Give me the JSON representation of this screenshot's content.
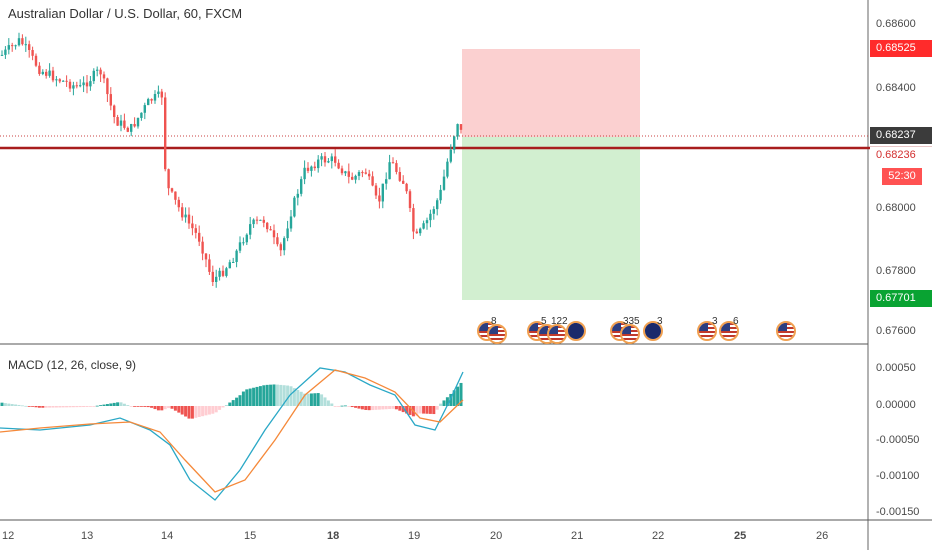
{
  "chart": {
    "title": "Australian Dollar / U.S. Dollar, 60, FXCM",
    "price_axis": [
      "0.68600",
      "0.68400",
      "0.68000",
      "0.67800",
      "0.67600"
    ],
    "labels": {
      "stop": "0.68525",
      "current": "0.68237",
      "last": "0.68236",
      "countdown": "52:30",
      "target": "0.67701"
    },
    "colors": {
      "up": "#26a69a",
      "down": "#ef5350",
      "stop_zone": "#f9c0c0",
      "target_zone": "#c8ebc6",
      "level_line": "#a81d1d"
    }
  },
  "macd": {
    "title": "MACD (12, 26, close, 9)",
    "axis": [
      "0.00050",
      "0.00000",
      "-0.00050",
      "-0.00100",
      "-0.00150"
    ]
  },
  "time_axis": [
    "12",
    "13",
    "14",
    "15",
    "18",
    "19",
    "20",
    "21",
    "22",
    "25",
    "26"
  ],
  "events": [
    {
      "num": "8",
      "icon": "us-flag-icon"
    },
    {
      "num": "5",
      "icon": "us-flag-icon"
    },
    {
      "num": "12",
      "icon": "us-flag-icon"
    },
    {
      "num": "2",
      "icon": "au-flag-icon"
    },
    {
      "num": "33",
      "icon": "us-flag-icon"
    },
    {
      "num": "5",
      "icon": "us-flag-icon"
    },
    {
      "num": "3",
      "icon": "au-flag-icon"
    },
    {
      "num": "3",
      "icon": "us-flag-icon"
    },
    {
      "num": "6",
      "icon": "us-flag-icon"
    },
    {
      "num": "",
      "icon": "us-flag-icon"
    }
  ]
}
